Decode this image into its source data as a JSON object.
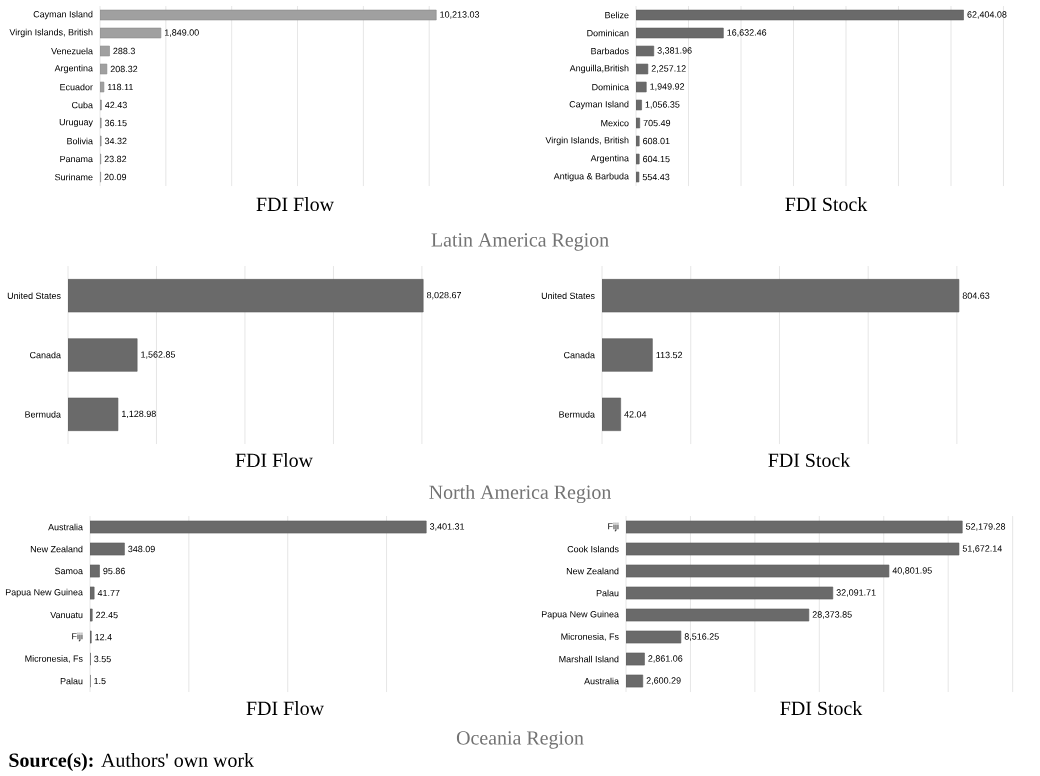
{
  "chart_data": [
    {
      "type": "bar",
      "orientation": "horizontal",
      "title": "FDI Flow",
      "categories": [
        "Cayman Island",
        "Virgin Islands, British",
        "Venezuela",
        "Argentina",
        "Ecuador",
        "Cuba",
        "Uruguay",
        "Bolivia",
        "Panama",
        "Suriname"
      ],
      "values": [
        10213.03,
        1849.0,
        288.3,
        208.32,
        118.11,
        42.43,
        36.15,
        34.32,
        23.82,
        20.09
      ],
      "value_labels": [
        "10,213.03",
        "1,849.00",
        "288.3",
        "208.32",
        "118.11",
        "42.43",
        "36.15",
        "34.32",
        "23.82",
        "20.09"
      ],
      "color": "#a0a0a0",
      "grid": "x",
      "tick_labels": "y"
    },
    {
      "type": "bar",
      "orientation": "horizontal",
      "title": "FDI Stock",
      "categories": [
        "Belize",
        "Dominican",
        "Barbados",
        "Anguilla,British",
        "Dominica",
        "Cayman Island",
        "Mexico",
        "Virgin Islands, British",
        "Argentina",
        "Antigua & Barbuda"
      ],
      "values": [
        62404.08,
        16632.46,
        3381.96,
        2257.12,
        1949.92,
        1056.35,
        705.49,
        608.01,
        604.15,
        554.43
      ],
      "value_labels": [
        "62,404.08",
        "16,632.46",
        "3,381.96",
        "2,257.12",
        "1,949.92",
        "1,056.35",
        "705.49",
        "608.01",
        "604.15",
        "554.43"
      ],
      "color": "#6a6a6a",
      "grid": "x",
      "tick_labels": "y",
      "annotations": [
        "Latin America Region"
      ]
    },
    {
      "type": "bar",
      "orientation": "horizontal",
      "title": "FDI Flow",
      "categories": [
        "United States",
        "Canada",
        "Bermuda"
      ],
      "values": [
        8028.67,
        1562.85,
        1128.98
      ],
      "value_labels": [
        "8,028.67",
        "1,562.85",
        "1,128.98"
      ],
      "color": "#6a6a6a",
      "grid": "x",
      "tick_labels": "y"
    },
    {
      "type": "bar",
      "orientation": "horizontal",
      "title": "FDI Stock",
      "categories": [
        "United States",
        "Canada",
        "Bermuda"
      ],
      "values": [
        804.63,
        113.52,
        42.04
      ],
      "value_labels": [
        "804.63",
        "113.52",
        "42.04"
      ],
      "color": "#6a6a6a",
      "grid": "x",
      "tick_labels": "y",
      "annotations": [
        "North America Region"
      ]
    },
    {
      "type": "bar",
      "orientation": "horizontal",
      "title": "FDI Flow",
      "categories": [
        "Australia",
        "New Zealand",
        "Samoa",
        "Papua New Guinea",
        "Vanuatu",
        "Fiji",
        "Micronesia, Fs",
        "Palau"
      ],
      "values": [
        3401.31,
        348.09,
        95.86,
        41.77,
        22.45,
        12.4,
        3.55,
        1.5
      ],
      "value_labels": [
        "3,401.31",
        "348.09",
        "95.86",
        "41.77",
        "22.45",
        "12.4",
        "3.55",
        "1.5"
      ],
      "color": "#6a6a6a",
      "grid": "x",
      "tick_labels": "y"
    },
    {
      "type": "bar",
      "orientation": "horizontal",
      "title": "FDI Stock",
      "categories": [
        "Fiji",
        "Cook Islands",
        "New Zealand",
        "Palau",
        "Papua New Guinea",
        "Micronesia, Fs",
        "Marshall Island",
        "Australia"
      ],
      "values": [
        52179.28,
        51672.14,
        40801.95,
        32091.71,
        28373.85,
        8516.25,
        2861.06,
        2600.29
      ],
      "value_labels": [
        "52,179.28",
        "51,672.14",
        "40,801.95",
        "32,091.71",
        "28,373.85",
        "8,516.25",
        "2,861.06",
        "2,600.29"
      ],
      "color": "#6a6a6a",
      "grid": "x",
      "tick_labels": "y",
      "annotations": [
        "Oceania Region",
        "**Source(s):** Authors' own work"
      ]
    }
  ]
}
